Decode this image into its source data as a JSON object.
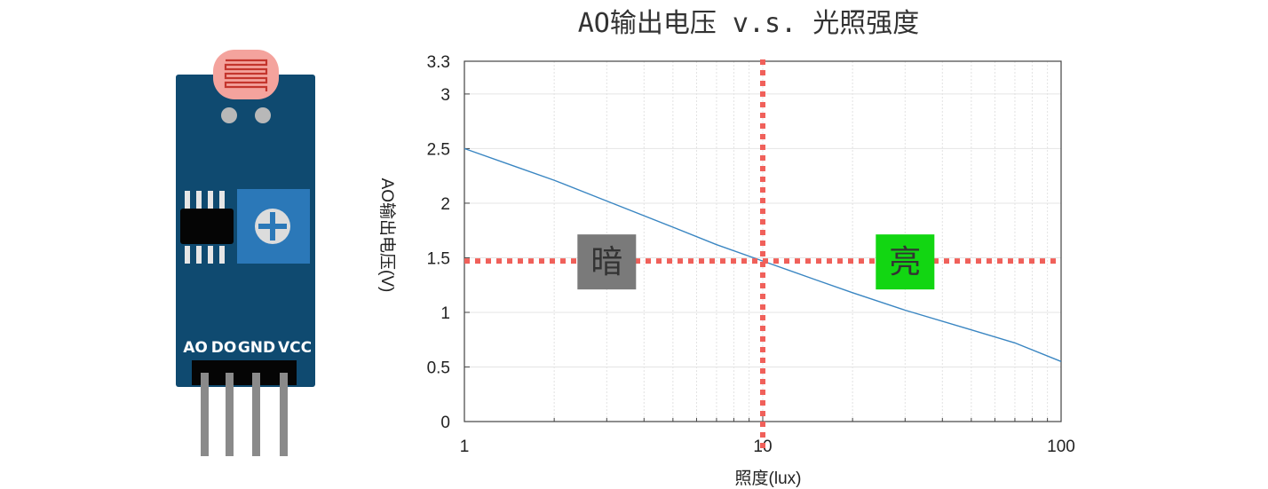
{
  "sensor": {
    "pins": [
      "AO",
      "DO",
      "GND",
      "VCC"
    ],
    "colors": {
      "board": "#0f4a70",
      "potentiometer": "#2b78b8",
      "ldr": "#f4a39d",
      "pin_metal": "#8a8a8a"
    }
  },
  "chart_data": {
    "type": "line",
    "title": "AO输出电压 v.s. 光照强度",
    "xlabel": "照度(lux)",
    "ylabel": "AO输出电压(V)",
    "x_scale": "log",
    "xlim": [
      1,
      100
    ],
    "ylim": [
      0,
      3.3
    ],
    "x_ticks": [
      "1",
      "10",
      "100"
    ],
    "y_ticks": [
      "0",
      "0.5",
      "1",
      "1.5",
      "2",
      "2.5",
      "3",
      "3.3"
    ],
    "grid": true,
    "series": [
      {
        "x": [
          1,
          1.5,
          2,
          3,
          5,
          7,
          10,
          15,
          20,
          30,
          50,
          70,
          100
        ],
        "values": [
          2.5,
          2.33,
          2.21,
          2.02,
          1.78,
          1.62,
          1.47,
          1.3,
          1.18,
          1.02,
          0.84,
          0.72,
          0.55
        ],
        "color": "#3a86c2"
      }
    ],
    "reference_lines": {
      "x": 10,
      "y": 1.47,
      "color": "#f0605a"
    },
    "regions": [
      {
        "label": "暗",
        "x": 3,
        "y": 1.47,
        "color": "#7a7a7a"
      },
      {
        "label": "亮",
        "x": 30,
        "y": 1.47,
        "color": "#12d612"
      }
    ]
  }
}
